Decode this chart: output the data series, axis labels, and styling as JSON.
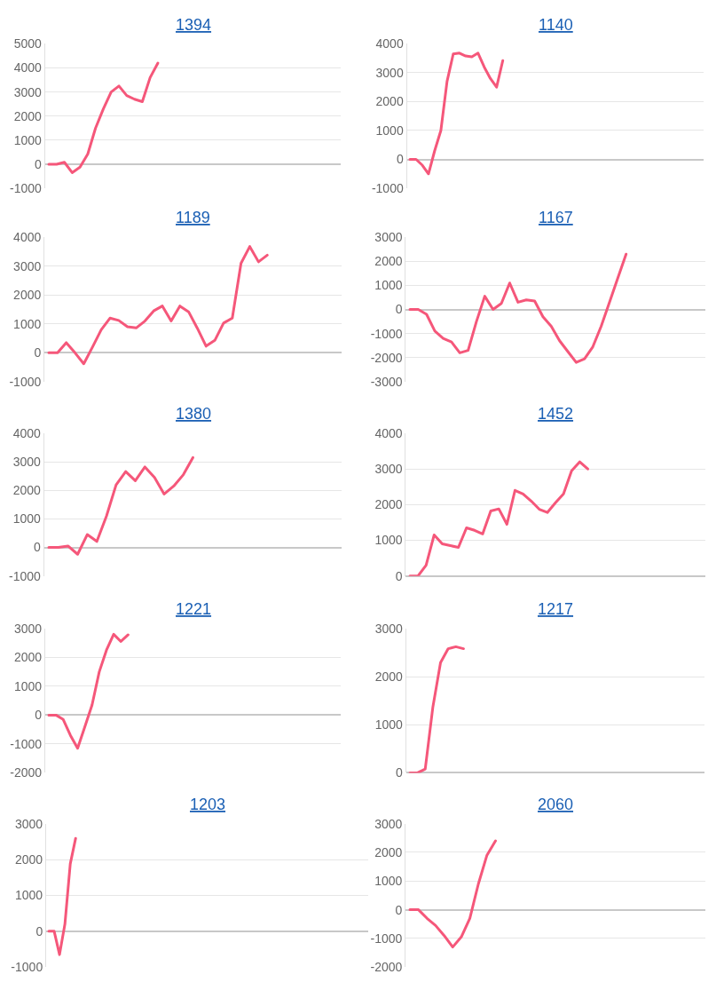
{
  "chart_data": [
    {
      "type": "line",
      "title": "1394",
      "color": "#f5577a",
      "grid": "y",
      "tick_labels": "y",
      "ylim": [
        -1000,
        5000
      ],
      "yticks": [
        -1000,
        0,
        1000,
        2000,
        3000,
        4000,
        5000
      ],
      "categories": [
        null,
        null,
        null,
        null,
        null,
        null,
        null,
        null,
        null,
        null,
        null,
        null,
        null,
        null,
        null,
        null,
        null,
        null,
        null,
        null,
        null,
        null,
        null,
        null,
        null,
        null,
        null,
        null,
        null,
        null,
        null,
        null,
        null,
        null,
        null,
        null,
        null,
        null
      ],
      "values": [
        0,
        0,
        80,
        -350,
        -120,
        420,
        1500,
        2300,
        3000,
        3250,
        2850,
        2700,
        2600,
        3600,
        4200,
        null,
        null,
        null,
        null,
        null,
        null,
        null,
        null,
        null,
        null,
        null,
        null,
        null,
        null,
        null,
        null,
        null,
        null,
        null,
        null,
        null,
        null,
        null
      ]
    },
    {
      "type": "line",
      "title": "1140",
      "color": "#f5577a",
      "grid": "y",
      "tick_labels": "y",
      "ylim": [
        -1000,
        4000
      ],
      "yticks": [
        -1000,
        0,
        1000,
        2000,
        3000,
        4000
      ],
      "categories": [
        null,
        null,
        null,
        null,
        null,
        null,
        null,
        null,
        null,
        null,
        null,
        null,
        null,
        null,
        null,
        null,
        null,
        null,
        null,
        null,
        null,
        null,
        null,
        null,
        null,
        null,
        null,
        null,
        null,
        null,
        null,
        null,
        null,
        null,
        null,
        null,
        null,
        null,
        null,
        null,
        null,
        null,
        null,
        null,
        null,
        null,
        null,
        null
      ],
      "values": [
        0,
        0,
        -200,
        -500,
        300,
        1000,
        2700,
        3650,
        3680,
        3580,
        3550,
        3680,
        3200,
        2800,
        2500,
        3420,
        null,
        null,
        null,
        null,
        null,
        null,
        null,
        null,
        null,
        null,
        null,
        null,
        null,
        null,
        null,
        null,
        null,
        null,
        null,
        null,
        null,
        null,
        null,
        null,
        null,
        null,
        null,
        null,
        null,
        null,
        null,
        null
      ]
    },
    {
      "type": "line",
      "title": "1189",
      "color": "#f5577a",
      "grid": "y",
      "tick_labels": "y",
      "ylim": [
        -1000,
        4000
      ],
      "yticks": [
        -1000,
        0,
        1000,
        2000,
        3000,
        4000
      ],
      "categories": [
        null,
        null,
        null,
        null,
        null,
        null,
        null,
        null,
        null,
        null,
        null,
        null,
        null,
        null,
        null,
        null,
        null,
        null,
        null,
        null,
        null,
        null,
        null,
        null,
        null,
        null,
        null,
        null,
        null,
        null,
        null,
        null,
        null,
        null
      ],
      "values": [
        0,
        0,
        350,
        0,
        -380,
        200,
        800,
        1200,
        1120,
        900,
        860,
        1100,
        1450,
        1620,
        1100,
        1620,
        1420,
        850,
        230,
        430,
        1030,
        1200,
        3100,
        3680,
        3150,
        3380,
        null,
        null,
        null,
        null,
        null,
        null,
        null,
        null
      ]
    },
    {
      "type": "line",
      "title": "1167",
      "color": "#f5577a",
      "grid": "y",
      "tick_labels": "y",
      "ylim": [
        -3000,
        3000
      ],
      "yticks": [
        -3000,
        -2000,
        -1000,
        0,
        1000,
        2000,
        3000
      ],
      "categories": [
        null,
        null,
        null,
        null,
        null,
        null,
        null,
        null,
        null,
        null,
        null,
        null,
        null,
        null,
        null,
        null,
        null,
        null,
        null,
        null,
        null,
        null,
        null,
        null,
        null,
        null,
        null,
        null,
        null,
        null,
        null,
        null,
        null,
        null,
        null,
        null
      ],
      "values": [
        0,
        0,
        -200,
        -900,
        -1200,
        -1350,
        -1800,
        -1700,
        -500,
        550,
        0,
        250,
        1100,
        300,
        400,
        350,
        -300,
        -700,
        -1300,
        -1750,
        -2200,
        -2050,
        -1550,
        -700,
        300,
        1300,
        2300,
        null,
        null,
        null,
        null,
        null,
        null,
        null,
        null,
        null
      ]
    },
    {
      "type": "line",
      "title": "1380",
      "color": "#f5577a",
      "grid": "y",
      "tick_labels": "y",
      "ylim": [
        -1000,
        4000
      ],
      "yticks": [
        -1000,
        0,
        1000,
        2000,
        3000,
        4000
      ],
      "categories": [
        null,
        null,
        null,
        null,
        null,
        null,
        null,
        null,
        null,
        null,
        null,
        null,
        null,
        null,
        null,
        null,
        null,
        null,
        null,
        null,
        null,
        null,
        null,
        null,
        null,
        null,
        null,
        null,
        null,
        null,
        null
      ],
      "values": [
        0,
        0,
        50,
        -240,
        450,
        210,
        1100,
        2190,
        2660,
        2340,
        2820,
        2450,
        1870,
        2150,
        2550,
        3150,
        null,
        null,
        null,
        null,
        null,
        null,
        null,
        null,
        null,
        null,
        null,
        null,
        null,
        null,
        null
      ]
    },
    {
      "type": "line",
      "title": "1452",
      "color": "#f5577a",
      "grid": "y",
      "tick_labels": "y",
      "ylim": [
        0,
        4000
      ],
      "yticks": [
        0,
        1000,
        2000,
        3000,
        4000
      ],
      "categories": [
        null,
        null,
        null,
        null,
        null,
        null,
        null,
        null,
        null,
        null,
        null,
        null,
        null,
        null,
        null,
        null,
        null,
        null,
        null,
        null,
        null,
        null,
        null,
        null,
        null,
        null,
        null,
        null,
        null,
        null,
        null,
        null,
        null,
        null,
        null,
        null,
        null
      ],
      "values": [
        0,
        0,
        300,
        1150,
        900,
        850,
        800,
        1350,
        1280,
        1180,
        1820,
        1880,
        1450,
        2400,
        2300,
        2100,
        1870,
        1780,
        2050,
        2300,
        2950,
        3200,
        3000,
        null,
        null,
        null,
        null,
        null,
        null,
        null,
        null,
        null,
        null,
        null,
        null,
        null,
        null
      ]
    },
    {
      "type": "line",
      "title": "1221",
      "color": "#f5577a",
      "grid": "y",
      "tick_labels": "y",
      "ylim": [
        -2000,
        3000
      ],
      "yticks": [
        -2000,
        -1000,
        0,
        1000,
        2000,
        3000
      ],
      "categories": [
        null,
        null,
        null,
        null,
        null,
        null,
        null,
        null,
        null,
        null,
        null,
        null,
        null,
        null,
        null,
        null,
        null,
        null,
        null,
        null,
        null,
        null,
        null,
        null,
        null,
        null,
        null,
        null,
        null,
        null,
        null,
        null,
        null,
        null,
        null,
        null,
        null,
        null,
        null,
        null,
        null
      ],
      "values": [
        0,
        0,
        -150,
        -700,
        -1150,
        -400,
        350,
        1500,
        2250,
        2800,
        2550,
        2780,
        null,
        null,
        null,
        null,
        null,
        null,
        null,
        null,
        null,
        null,
        null,
        null,
        null,
        null,
        null,
        null,
        null,
        null,
        null,
        null,
        null,
        null,
        null,
        null,
        null,
        null,
        null,
        null,
        null
      ]
    },
    {
      "type": "line",
      "title": "1217",
      "color": "#f5577a",
      "grid": "y",
      "tick_labels": "y",
      "ylim": [
        0,
        3000
      ],
      "yticks": [
        0,
        1000,
        2000,
        3000
      ],
      "categories": [
        null,
        null,
        null,
        null,
        null,
        null,
        null,
        null,
        null,
        null,
        null,
        null,
        null,
        null,
        null,
        null,
        null,
        null,
        null,
        null,
        null,
        null,
        null,
        null,
        null,
        null,
        null,
        null,
        null,
        null,
        null,
        null,
        null,
        null,
        null,
        null,
        null,
        null,
        null
      ],
      "values": [
        0,
        0,
        80,
        1370,
        2290,
        2580,
        2620,
        2580,
        null,
        null,
        null,
        null,
        null,
        null,
        null,
        null,
        null,
        null,
        null,
        null,
        null,
        null,
        null,
        null,
        null,
        null,
        null,
        null,
        null,
        null,
        null,
        null,
        null,
        null,
        null,
        null,
        null,
        null,
        null
      ]
    },
    {
      "type": "line",
      "title": "1203",
      "color": "#f5577a",
      "grid": "y",
      "tick_labels": "y",
      "ylim": [
        -1000,
        3000
      ],
      "yticks": [
        -1000,
        0,
        1000,
        2000,
        3000
      ],
      "categories": [
        null,
        null,
        null,
        null,
        null,
        null,
        null,
        null,
        null,
        null,
        null,
        null,
        null,
        null,
        null,
        null,
        null,
        null,
        null,
        null,
        null,
        null,
        null,
        null,
        null,
        null,
        null,
        null,
        null,
        null,
        null,
        null,
        null,
        null,
        null,
        null,
        null,
        null,
        null,
        null,
        null,
        null,
        null,
        null,
        null,
        null,
        null,
        null,
        null,
        null,
        null,
        null,
        null,
        null,
        null,
        null,
        null,
        null,
        null,
        null
      ],
      "values": [
        0,
        0,
        -650,
        200,
        1880,
        2590,
        null,
        null,
        null,
        null,
        null,
        null,
        null,
        null,
        null,
        null,
        null,
        null,
        null,
        null,
        null,
        null,
        null,
        null,
        null,
        null,
        null,
        null,
        null,
        null,
        null,
        null,
        null,
        null,
        null,
        null,
        null,
        null,
        null,
        null,
        null,
        null,
        null,
        null,
        null,
        null,
        null,
        null,
        null,
        null,
        null,
        null,
        null,
        null,
        null,
        null,
        null,
        null,
        null,
        null
      ]
    },
    {
      "type": "line",
      "title": "2060",
      "color": "#f5577a",
      "grid": "y",
      "tick_labels": "y",
      "ylim": [
        -2000,
        3000
      ],
      "yticks": [
        -2000,
        -1000,
        0,
        1000,
        2000,
        3000
      ],
      "categories": [
        null,
        null,
        null,
        null,
        null,
        null,
        null,
        null,
        null,
        null,
        null,
        null,
        null,
        null,
        null,
        null,
        null,
        null,
        null,
        null,
        null,
        null,
        null,
        null,
        null,
        null,
        null,
        null,
        null,
        null,
        null,
        null,
        null,
        null,
        null
      ],
      "values": [
        0,
        0,
        -300,
        -550,
        -900,
        -1300,
        -950,
        -300,
        900,
        1900,
        2400,
        null,
        null,
        null,
        null,
        null,
        null,
        null,
        null,
        null,
        null,
        null,
        null,
        null,
        null,
        null,
        null,
        null,
        null,
        null,
        null,
        null,
        null,
        null,
        null
      ]
    }
  ]
}
